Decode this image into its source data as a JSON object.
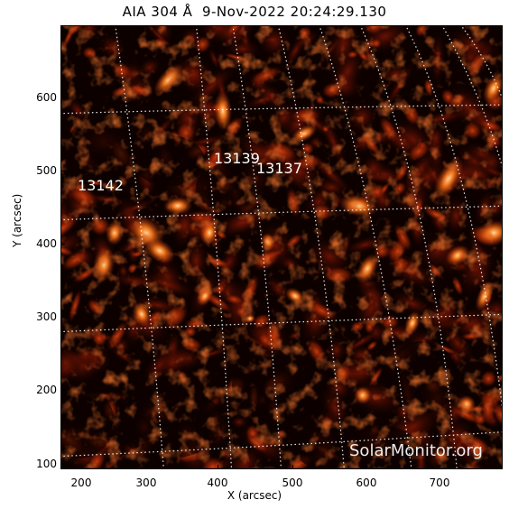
{
  "title": "AIA 304 Å  9-Nov-2022 20:24:29.130",
  "xlabel": "X (arcsec)",
  "ylabel": "Y (arcsec)",
  "xticks": [
    "200",
    "300",
    "400",
    "500",
    "600",
    "700"
  ],
  "yticks": [
    "100",
    "200",
    "300",
    "400",
    "500",
    "600"
  ],
  "regions": [
    {
      "label": "13139"
    },
    {
      "label": "13137"
    },
    {
      "label": "13142"
    }
  ],
  "watermark": "SolarMonitor.org",
  "colors": {
    "background": "#0d0100",
    "emission_mid": "#a52a08",
    "emission_bright": "#ff7a1a",
    "emission_peak": "#ffd9a0",
    "grid": "#ffffff"
  }
}
